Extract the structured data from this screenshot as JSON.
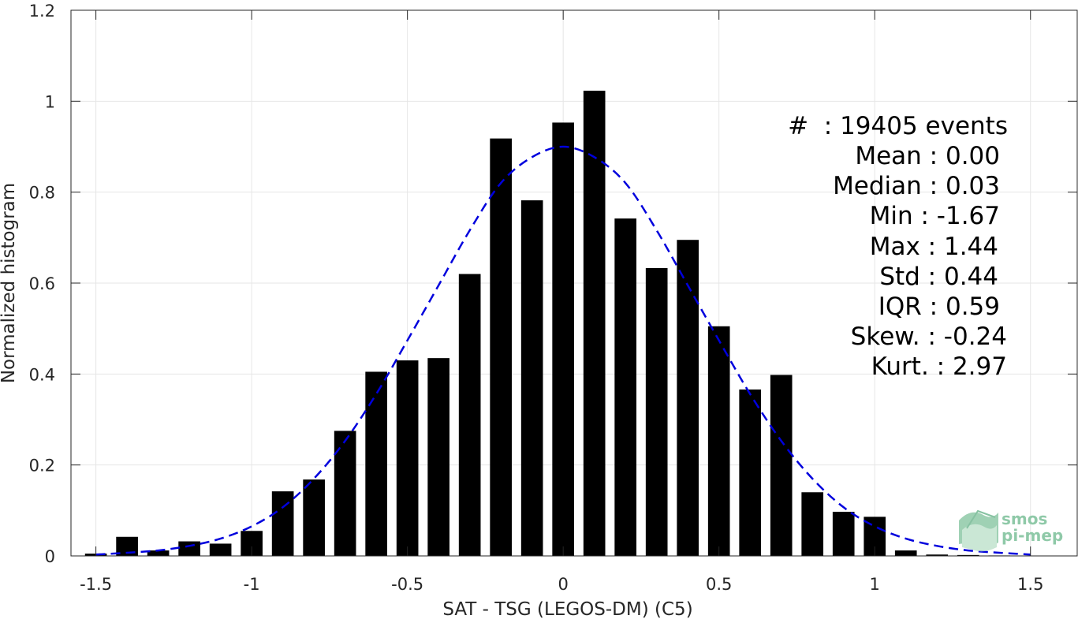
{
  "chart_data": {
    "type": "bar",
    "title": "",
    "xlabel": "SAT - TSG (LEGOS-DM) (C5)",
    "ylabel": "Normalized histogram",
    "xlim": [
      -1.58,
      1.65
    ],
    "ylim": [
      0,
      1.2
    ],
    "xticks": [
      -1.5,
      -1,
      -0.5,
      0,
      0.5,
      1,
      1.5
    ],
    "xtick_labels": [
      "-1.5",
      "-1",
      "-0.5",
      "0",
      "0.5",
      "1",
      "1.5"
    ],
    "yticks": [
      0,
      0.2,
      0.4,
      0.6,
      0.8,
      1,
      1.2
    ],
    "ytick_labels": [
      "0",
      "0.2",
      "0.4",
      "0.6",
      "0.8",
      "1",
      "1.2"
    ],
    "grid": true,
    "bar_width": 0.07,
    "series": [
      {
        "kind": "bars",
        "color": "#000000",
        "x": [
          -1.5,
          -1.4,
          -1.3,
          -1.2,
          -1.1,
          -1.0,
          -0.9,
          -0.8,
          -0.7,
          -0.6,
          -0.5,
          -0.4,
          -0.3,
          -0.2,
          -0.1,
          0.0,
          0.1,
          0.2,
          0.3,
          0.4,
          0.5,
          0.6,
          0.7,
          0.8,
          0.9,
          1.0,
          1.1,
          1.2,
          1.3,
          1.4
        ],
        "values": [
          0.005,
          0.042,
          0.012,
          0.032,
          0.027,
          0.055,
          0.142,
          0.168,
          0.275,
          0.405,
          0.43,
          0.435,
          0.62,
          0.918,
          0.782,
          0.953,
          1.023,
          0.742,
          0.633,
          0.695,
          0.505,
          0.366,
          0.398,
          0.14,
          0.097,
          0.086,
          0.012,
          0.003,
          0.002,
          0.001
        ]
      },
      {
        "kind": "fit",
        "color": "#0000dd",
        "style": "dashed",
        "x": [
          -1.5,
          -1.4,
          -1.3,
          -1.2,
          -1.1,
          -1.0,
          -0.9,
          -0.8,
          -0.7,
          -0.6,
          -0.5,
          -0.4,
          -0.3,
          -0.2,
          -0.1,
          0.0,
          0.1,
          0.2,
          0.3,
          0.4,
          0.5,
          0.6,
          0.7,
          0.8,
          0.9,
          1.0,
          1.1,
          1.2,
          1.3,
          1.4,
          1.5
        ],
        "values": [
          0.003,
          0.007,
          0.012,
          0.022,
          0.038,
          0.065,
          0.107,
          0.17,
          0.253,
          0.356,
          0.474,
          0.595,
          0.716,
          0.82,
          0.877,
          0.9,
          0.877,
          0.82,
          0.716,
          0.595,
          0.474,
          0.356,
          0.253,
          0.17,
          0.107,
          0.065,
          0.038,
          0.022,
          0.012,
          0.007,
          0.003
        ]
      }
    ],
    "annotations": [
      "#  : 19405 events",
      "Mean : 0.00",
      "Median : 0.03",
      "Min : -1.67",
      "Max : 1.44",
      "Std : 0.44",
      "IQR : 0.59",
      "Skew. : -0.24",
      "Kurt. : 2.97"
    ]
  },
  "logo": {
    "line1": "smos",
    "line2": "pi-mep"
  }
}
